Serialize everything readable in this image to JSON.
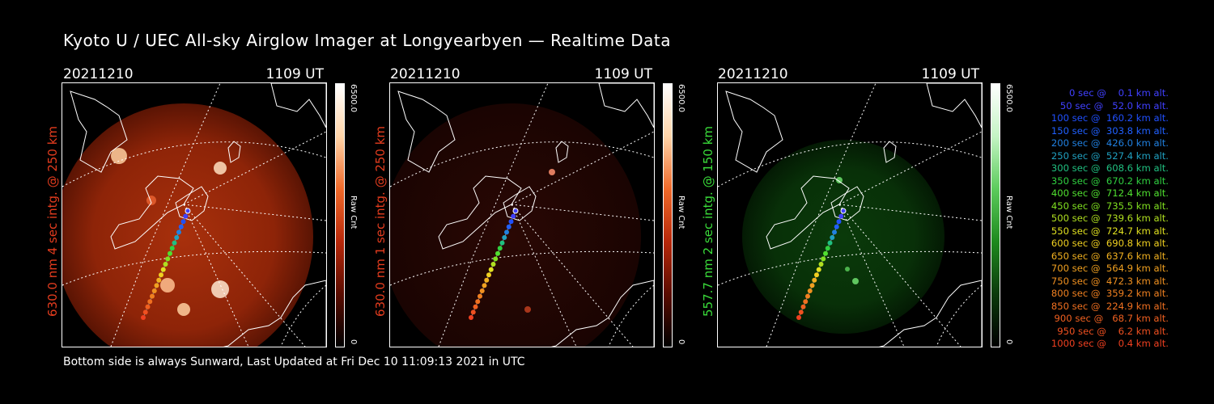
{
  "title": "Kyoto U / UEC All-sky Airglow Imager at Longyearbyen — Realtime Data",
  "footer": "Bottom side is always Sunward, Last Updated at Fri Dec 10 11:09:13 2021 in UTC",
  "panels": [
    {
      "date": "20211210",
      "time": "1109 UT",
      "label": "630.0 nm 4 sec intg. @ 250 km",
      "label_color": "#e43c1e",
      "colorbar": {
        "max": "6500.0",
        "min": "0",
        "unit": "Raw Cnt",
        "colors": [
          "#000000",
          "#5a0c00",
          "#b8280a",
          "#f06a2a",
          "#ffd4a8",
          "#ffffff"
        ]
      },
      "brightness": "high"
    },
    {
      "date": "20211210",
      "time": "1109 UT",
      "label": "630.0 nm 1 sec intg. @ 250 km",
      "label_color": "#e43c1e",
      "colorbar": {
        "max": "6500.0",
        "min": "0",
        "unit": "Raw Cnt",
        "colors": [
          "#000000",
          "#5a0c00",
          "#b8280a",
          "#f06a2a",
          "#ffd4a8",
          "#ffffff"
        ]
      },
      "brightness": "low"
    },
    {
      "date": "20211210",
      "time": "1109 UT",
      "label": "557.7 nm 2 sec intg. @ 150 km",
      "label_color": "#3adc3a",
      "colorbar": {
        "max": "6500.0",
        "min": "0",
        "unit": "Raw Cnt",
        "colors": [
          "#000000",
          "#0c3a0c",
          "#1e8a1e",
          "#5ccc5c",
          "#c4f4c4",
          "#ffffff"
        ]
      },
      "brightness": "medium"
    }
  ],
  "legend": [
    {
      "text": "0 sec @    0.1 km alt.",
      "color": "#4040ff"
    },
    {
      "text": "50 sec @   52.0 km alt.",
      "color": "#4040ff"
    },
    {
      "text": "100 sec @  160.2 km alt.",
      "color": "#2050ff"
    },
    {
      "text": "150 sec @  303.8 km alt.",
      "color": "#2060ff"
    },
    {
      "text": "200 sec @  426.0 km alt.",
      "color": "#2080e0"
    },
    {
      "text": "250 sec @  527.4 km alt.",
      "color": "#20a0c0"
    },
    {
      "text": "300 sec @  608.6 km alt.",
      "color": "#20c080"
    },
    {
      "text": "350 sec @  670.2 km alt.",
      "color": "#30d040"
    },
    {
      "text": "400 sec @  712.4 km alt.",
      "color": "#50e030"
    },
    {
      "text": "450 sec @  735.5 km alt.",
      "color": "#80e020"
    },
    {
      "text": "500 sec @  739.6 km alt.",
      "color": "#b0e020"
    },
    {
      "text": "550 sec @  724.7 km alt.",
      "color": "#e0e020"
    },
    {
      "text": "600 sec @  690.8 km alt.",
      "color": "#f0d020"
    },
    {
      "text": "650 sec @  637.6 km alt.",
      "color": "#f0b020"
    },
    {
      "text": "700 sec @  564.9 km alt.",
      "color": "#f0a020"
    },
    {
      "text": "750 sec @  472.3 km alt.",
      "color": "#f09020"
    },
    {
      "text": "800 sec @  359.2 km alt.",
      "color": "#f08020"
    },
    {
      "text": "850 sec @  224.9 km alt.",
      "color": "#f07020"
    },
    {
      "text": "900 sec @   68.7 km alt.",
      "color": "#f06020"
    },
    {
      "text": "950 sec @    6.2 km alt.",
      "color": "#f05020"
    },
    {
      "text": "1000 sec @    0.4 km alt.",
      "color": "#f04020"
    }
  ]
}
